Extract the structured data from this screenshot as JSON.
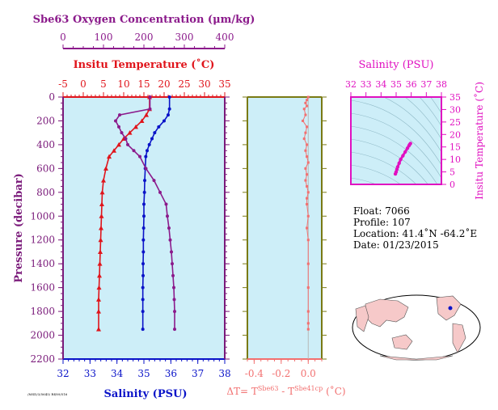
{
  "colors": {
    "oxygen": "#8b1a8b",
    "temperature": "#e0141b",
    "salinity": "#0a13c8",
    "dt": "#f27070",
    "pressure": "#7a1a7a",
    "panel_bg": "#cdeef8",
    "inset_axis": "#e010c0",
    "olive": "#7a7a14"
  },
  "labels": {
    "oxygen_axis": "Sbe63 Oxygen Concentration (μm/kg)",
    "temperature_axis": "Insitu Temperature (˚C)",
    "pressure_axis": "Pressure (decibar)",
    "salinity_axis": "Salinity (PSU)",
    "dt_axis_prefix": "ΔT= T",
    "dt_sup1": "Sbe63",
    "dt_mid": " - T",
    "dt_sup2": "Sbe41cp",
    "dt_suffix": " (˚C)",
    "inset_salinity_axis": "Salinity (PSU)",
    "inset_temperature_axis": "Insitu Temperature (˚C)",
    "fine_print": "/MSD/3/5645/ Rf/89/516"
  },
  "info": {
    "float_line": "Float:  7066",
    "profile_line": "Profile:  107",
    "location_line": "Location:  41.4˚N  -64.2˚E",
    "date_line": "Date:  01/23/2015"
  },
  "ticks": {
    "oxygen": [
      "0",
      "100",
      "200",
      "300",
      "400"
    ],
    "temperature": [
      "-5",
      "0",
      "5",
      "10",
      "15",
      "20",
      "25",
      "30",
      "35"
    ],
    "pressure": [
      "0",
      "200",
      "400",
      "600",
      "800",
      "1000",
      "1200",
      "1400",
      "1600",
      "1800",
      "2000",
      "2200"
    ],
    "salinity": [
      "32",
      "33",
      "34",
      "35",
      "36",
      "37",
      "38"
    ],
    "dt": [
      "-0.4",
      "-0.2",
      "0.0"
    ],
    "inset_salinity": [
      "32",
      "33",
      "34",
      "35",
      "36",
      "37",
      "38"
    ],
    "inset_temperature": [
      "0",
      "5",
      "10",
      "15",
      "20",
      "25",
      "30",
      "35"
    ]
  },
  "chart_data": [
    {
      "type": "line",
      "title": "",
      "ylabel": "Pressure (decibar)",
      "ylim": [
        2200,
        0
      ],
      "series": [
        {
          "name": "Insitu Temperature (˚C)",
          "xlim": [
            -5,
            35
          ],
          "x": [
            16.4,
            16.4,
            15.6,
            14.5,
            13.0,
            11.5,
            10.0,
            8.8,
            7.6,
            6.4,
            5.6,
            5.0,
            4.7,
            4.6,
            4.5,
            4.4,
            4.3,
            4.2,
            4.1,
            4.0,
            3.9,
            3.8,
            3.8,
            3.8
          ],
          "y": [
            0,
            100,
            150,
            200,
            250,
            300,
            350,
            400,
            450,
            500,
            600,
            700,
            800,
            900,
            1000,
            1100,
            1200,
            1300,
            1400,
            1500,
            1600,
            1700,
            1800,
            1950
          ]
        },
        {
          "name": "Salinity (PSU)",
          "xlim": [
            32,
            38
          ],
          "x": [
            35.95,
            35.95,
            35.9,
            35.75,
            35.55,
            35.4,
            35.3,
            35.2,
            35.12,
            35.07,
            35.05,
            35.03,
            35.02,
            35.0,
            35.0,
            34.99,
            34.98,
            34.98,
            34.97,
            34.97,
            34.96,
            34.96,
            34.96,
            34.96
          ],
          "y": [
            0,
            100,
            150,
            200,
            250,
            300,
            350,
            400,
            450,
            500,
            600,
            700,
            800,
            900,
            1000,
            1100,
            1200,
            1300,
            1400,
            1500,
            1600,
            1700,
            1800,
            1950
          ]
        },
        {
          "name": "Sbe63 Oxygen Concentration (μm/kg)",
          "xlim": [
            0,
            400
          ],
          "x": [
            215,
            215,
            140,
            130,
            138,
            145,
            155,
            160,
            175,
            190,
            205,
            225,
            240,
            255,
            258,
            262,
            265,
            268,
            270,
            272,
            274,
            275,
            276,
            276
          ],
          "y": [
            0,
            100,
            150,
            200,
            250,
            300,
            350,
            400,
            450,
            500,
            600,
            700,
            800,
            900,
            1000,
            1100,
            1200,
            1300,
            1400,
            1500,
            1600,
            1700,
            1800,
            1950
          ]
        }
      ]
    },
    {
      "type": "scatter",
      "title": "",
      "xlabel": "ΔT= T Sbe63 - T Sbe41cp (˚C)",
      "ylabel": "Pressure (decibar)",
      "xlim": [
        -0.45,
        0.1
      ],
      "ylim": [
        2200,
        0
      ],
      "series": [
        {
          "name": "ΔT",
          "x": [
            0.0,
            -0.01,
            -0.02,
            -0.01,
            -0.03,
            -0.02,
            -0.04,
            -0.01,
            -0.02,
            -0.03,
            -0.01,
            -0.02,
            -0.01,
            0.0,
            -0.02,
            -0.01,
            -0.02,
            -0.01,
            0.0,
            -0.01,
            -0.01,
            0.0,
            -0.01,
            0.0,
            0.0,
            0.0,
            0.0,
            0.0,
            0.0
          ],
          "y": [
            0,
            25,
            50,
            75,
            100,
            150,
            200,
            250,
            300,
            350,
            400,
            450,
            500,
            550,
            600,
            650,
            700,
            750,
            800,
            850,
            900,
            1000,
            1100,
            1200,
            1400,
            1600,
            1800,
            1900,
            1950
          ]
        }
      ]
    },
    {
      "type": "scatter",
      "title": "",
      "xlabel": "Salinity (PSU)",
      "ylabel": "Insitu Temperature (˚C)",
      "xlim": [
        32,
        38
      ],
      "ylim": [
        0,
        35
      ],
      "series": [
        {
          "name": "T-S",
          "x": [
            34.95,
            35.0,
            35.05,
            35.1,
            35.2,
            35.3,
            35.45,
            35.6,
            35.75,
            35.85,
            35.9,
            35.95
          ],
          "y": [
            4.2,
            5.0,
            6.0,
            7.0,
            8.5,
            10.0,
            11.5,
            13.0,
            14.5,
            15.5,
            16.0,
            16.4
          ]
        }
      ]
    }
  ]
}
